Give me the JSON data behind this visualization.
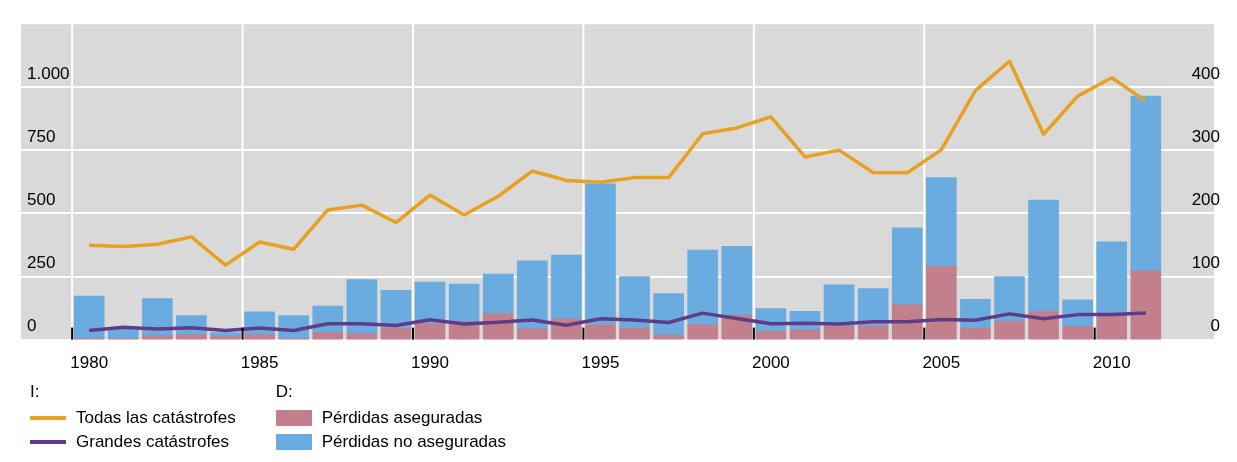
{
  "chart_data": {
    "type": "bar",
    "stacked": true,
    "x": [
      1980,
      1981,
      1982,
      1983,
      1984,
      1985,
      1986,
      1987,
      1988,
      1989,
      1990,
      1991,
      1992,
      1993,
      1994,
      1995,
      1996,
      1997,
      1998,
      1999,
      2000,
      2001,
      2002,
      2003,
      2004,
      2005,
      2006,
      2007,
      2008,
      2009,
      2010,
      2011
    ],
    "xlim": [
      1978,
      2013
    ],
    "xticks": [
      1980,
      1985,
      1990,
      1995,
      2000,
      2005,
      2010
    ],
    "ylim": [
      0,
      1250
    ],
    "yticks": [
      0,
      250,
      500,
      750,
      {
        "value": 1000,
        "label": "1.000"
      }
    ],
    "y2lim": [
      0,
      500
    ],
    "y2ticks": [
      0,
      100,
      200,
      300,
      400
    ],
    "grid": true,
    "legend": "bottom",
    "annotations": [
      "I:",
      "D:"
    ],
    "series": [
      {
        "name": "Pérdidas aseguradas",
        "axis": "y2",
        "color": "#c27f8c",
        "values": [
          2,
          2,
          6,
          8,
          5,
          8,
          2,
          11,
          10,
          18,
          25,
          28,
          41,
          17,
          33,
          24,
          18,
          7,
          24,
          39,
          13,
          15,
          21,
          22,
          55,
          116,
          18,
          29,
          45,
          21,
          39,
          109
        ]
      },
      {
        "name": "Pérdidas no aseguradas",
        "axis": "y2",
        "color": "#6aabe0",
        "values": [
          67,
          16,
          59,
          30,
          6,
          36,
          36,
          42,
          85,
          60,
          66,
          60,
          63,
          108,
          101,
          223,
          82,
          66,
          118,
          109,
          36,
          30,
          66,
          59,
          122,
          141,
          46,
          71,
          176,
          42,
          116,
          277
        ]
      },
      {
        "name": "Todas las catástrofes",
        "type": "line",
        "axis": "y",
        "color": "#e8a020",
        "values": [
          374,
          369,
          378,
          407,
          295,
          387,
          358,
          514,
          533,
          464,
          573,
          494,
          568,
          668,
          631,
          624,
          642,
          642,
          816,
          839,
          883,
          724,
          751,
          662,
          661,
          752,
          987,
          1103,
          814,
          965,
          1038,
          945
        ]
      },
      {
        "name": "Grandes catástrofes",
        "type": "line",
        "axis": "y",
        "color": "#5f3c87",
        "values": [
          36,
          49,
          42,
          47,
          36,
          46,
          36,
          63,
          63,
          56,
          79,
          62,
          69,
          78,
          57,
          83,
          78,
          68,
          105,
          84,
          63,
          65,
          62,
          71,
          71,
          80,
          77,
          102,
          83,
          99,
          99,
          105
        ]
      }
    ]
  }
}
